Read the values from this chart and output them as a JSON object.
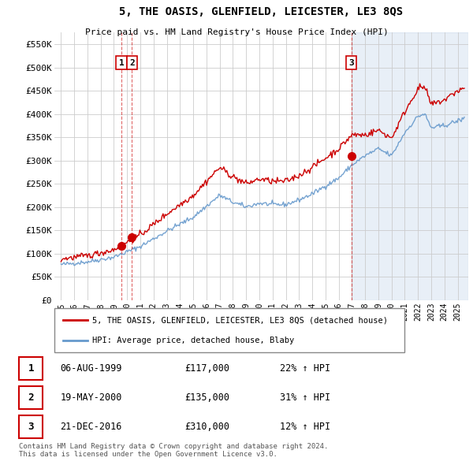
{
  "title": "5, THE OASIS, GLENFIELD, LEICESTER, LE3 8QS",
  "subtitle": "Price paid vs. HM Land Registry's House Price Index (HPI)",
  "ylabel_ticks": [
    "£0",
    "£50K",
    "£100K",
    "£150K",
    "£200K",
    "£250K",
    "£300K",
    "£350K",
    "£400K",
    "£450K",
    "£500K",
    "£550K"
  ],
  "ytick_values": [
    0,
    50000,
    100000,
    150000,
    200000,
    250000,
    300000,
    350000,
    400000,
    450000,
    500000,
    550000
  ],
  "ylim": [
    0,
    575000
  ],
  "xlim_start": 1994.5,
  "xlim_end": 2025.8,
  "xtick_years": [
    1995,
    1996,
    1997,
    1998,
    1999,
    2000,
    2001,
    2002,
    2003,
    2004,
    2005,
    2006,
    2007,
    2008,
    2009,
    2010,
    2011,
    2012,
    2013,
    2014,
    2015,
    2016,
    2017,
    2018,
    2019,
    2020,
    2021,
    2022,
    2023,
    2024,
    2025
  ],
  "sale_points": [
    {
      "label": "1",
      "year": 1999.58,
      "price": 117000,
      "date": "06-AUG-1999",
      "price_str": "£117,000",
      "hpi_str": "22% ↑ HPI"
    },
    {
      "label": "2",
      "year": 2000.37,
      "price": 135000,
      "date": "19-MAY-2000",
      "price_str": "£135,000",
      "hpi_str": "31% ↑ HPI"
    },
    {
      "label": "3",
      "year": 2016.96,
      "price": 310000,
      "date": "21-DEC-2016",
      "price_str": "£310,000",
      "hpi_str": "12% ↑ HPI"
    }
  ],
  "red_line_color": "#cc0000",
  "blue_line_color": "#6699cc",
  "blue_shade_color": "#ddeeff",
  "dashed_line_color": "#cc0000",
  "dashed_line_color2": "#aabbdd",
  "background_color": "#ffffff",
  "grid_color": "#cccccc",
  "legend_label_red": "5, THE OASIS, GLENFIELD, LEICESTER, LE3 8QS (detached house)",
  "legend_label_blue": "HPI: Average price, detached house, Blaby",
  "footnote": "Contains HM Land Registry data © Crown copyright and database right 2024.\nThis data is licensed under the Open Government Licence v3.0."
}
